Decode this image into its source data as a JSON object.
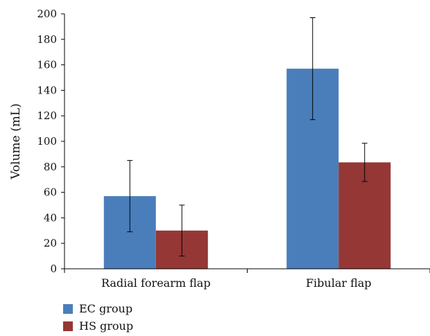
{
  "chart_data": {
    "type": "bar",
    "title": "",
    "xlabel": "",
    "ylabel": "Volume (mL)",
    "ylim": [
      0,
      200
    ],
    "yticks": [
      0,
      20,
      40,
      60,
      80,
      100,
      120,
      140,
      160,
      180,
      200
    ],
    "grid": false,
    "legend_position": "bottom-left",
    "categories": [
      "Radial forearm flap",
      "Fibular flap"
    ],
    "series": [
      {
        "name": "EC group",
        "color": "#4a7ebb",
        "values": [
          57,
          157
        ],
        "error": [
          28,
          40
        ]
      },
      {
        "name": "HS group",
        "color": "#953735",
        "values": [
          30,
          83.5
        ],
        "error": [
          20,
          15
        ]
      }
    ]
  }
}
